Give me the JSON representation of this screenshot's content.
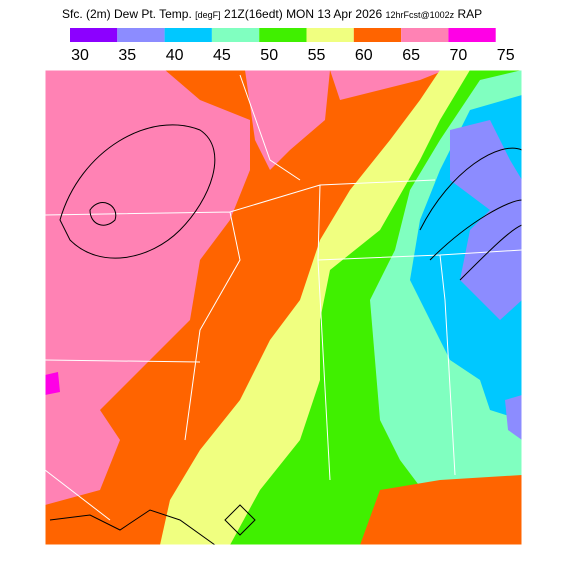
{
  "header": {
    "title": [
      "Sfc. (2m) Dew Pt. Temp.",
      "[degF]",
      "21Z(16edt)",
      "MON 13 Apr 2026",
      "12hrFcst@1002z",
      "RAP"
    ]
  },
  "legend": {
    "labels": [
      30,
      35,
      40,
      45,
      50,
      55,
      60,
      65,
      70,
      75
    ],
    "colors": [
      "#8c00ff",
      "#8c8cff",
      "#00c8ff",
      "#80ffc0",
      "#40f000",
      "#f0ff80",
      "#ff6400",
      "#ff82b4",
      "#ff00e6"
    ]
  }
}
